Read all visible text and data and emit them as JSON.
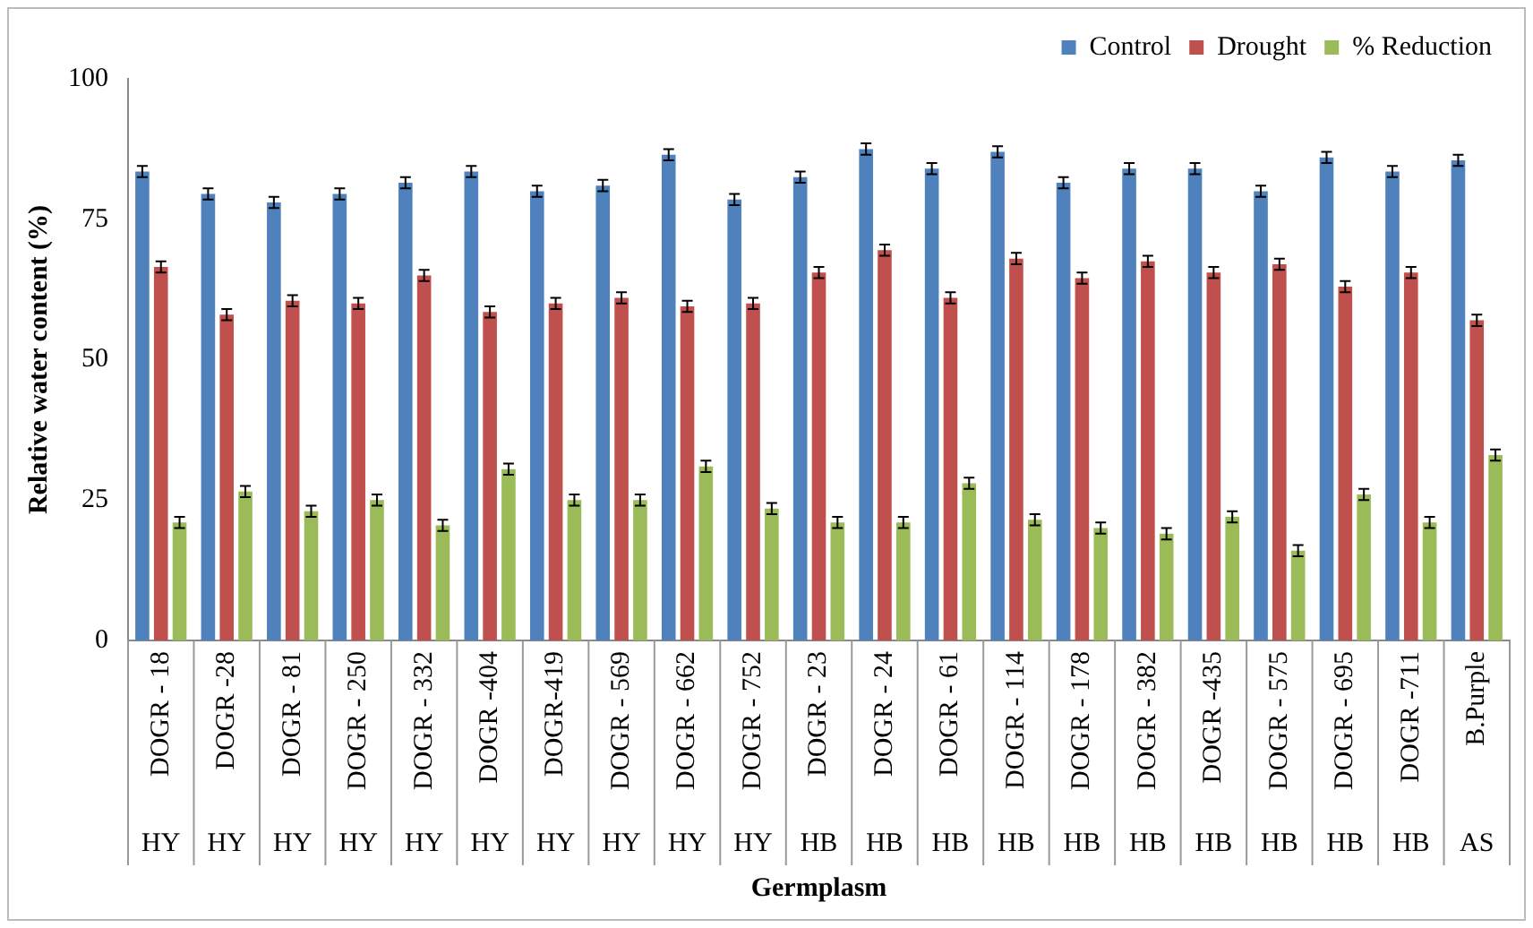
{
  "chart_data": {
    "type": "bar",
    "xlabel": "Germplasm",
    "ylabel": "Relative water content (%)",
    "categories": [
      "DOGR - 18",
      "DOGR -28",
      "DOGR - 81",
      "DOGR - 250",
      "DOGR - 332",
      "DOGR -404",
      "DOGR-419",
      "DOGR - 569",
      "DOGR - 662",
      "DOGR - 752",
      "DOGR - 23",
      "DOGR - 24",
      "DOGR - 61",
      "DOGR - 114",
      "DOGR - 178",
      "DOGR - 382",
      "DOGR -435",
      "DOGR - 575",
      "DOGR - 695",
      "DOGR -711",
      "B.Purple"
    ],
    "series": [
      {
        "name": "Control",
        "color": "#4f81bd",
        "values": [
          83.5,
          79.5,
          78,
          79.5,
          81.5,
          83.5,
          80,
          81,
          86.5,
          78.5,
          82.5,
          87.5,
          84,
          87,
          81.5,
          84,
          84,
          80,
          86,
          83.5,
          85.5
        ],
        "errors": [
          1,
          1,
          1,
          1,
          1,
          1,
          1,
          1,
          1,
          1,
          1,
          1,
          1,
          1,
          1,
          1,
          1,
          1,
          1,
          1,
          1
        ]
      },
      {
        "name": "Drought",
        "color": "#c0504d",
        "values": [
          66.5,
          58,
          60.5,
          60,
          65,
          58.5,
          60,
          61,
          59.5,
          60,
          65.5,
          69.5,
          61,
          68,
          64.5,
          67.5,
          65.5,
          67,
          63,
          65.5,
          57
        ],
        "errors": [
          1,
          1,
          1,
          1,
          1,
          1,
          1,
          1,
          1,
          1,
          1,
          1,
          1,
          1,
          1,
          1,
          1,
          1,
          1,
          1,
          1
        ]
      },
      {
        "name": "% Reduction",
        "color": "#9bbb59",
        "values": [
          21,
          26.5,
          23,
          25,
          20.5,
          30.5,
          25,
          25,
          31,
          23.5,
          21,
          21,
          28,
          21.5,
          20,
          19,
          22,
          16,
          26,
          21,
          33
        ],
        "errors": [
          1,
          1,
          1,
          1,
          1,
          1,
          1,
          1,
          1,
          1,
          1,
          1,
          1,
          1,
          1,
          1,
          1,
          1,
          1,
          1,
          1
        ]
      }
    ],
    "ylim": [
      0,
      100
    ],
    "yticks": [
      0,
      25,
      50,
      75,
      100
    ],
    "grid": false,
    "legend": "top right",
    "annotations": [
      "HY",
      "HY",
      "HY",
      "HY",
      "HY",
      "HY",
      "HY",
      "HY",
      "HY",
      "HY",
      "HB",
      "HB",
      "HB",
      "HB",
      "HB",
      "HB",
      "HB",
      "HB",
      "HB",
      "HB",
      "AS"
    ]
  }
}
